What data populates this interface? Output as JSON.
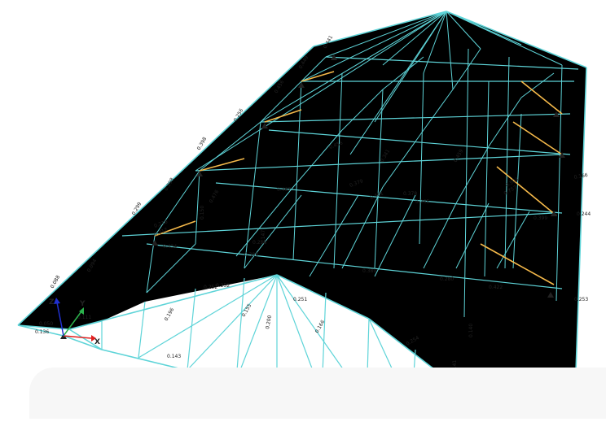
{
  "colors": {
    "background": "#ffffff",
    "roof_fill": "#f4c2c2",
    "member": "#5ed4d8",
    "brace": "#f5b94a",
    "support": "#222222",
    "axis_x": "#e02020",
    "axis_y": "#2bb24c",
    "axis_z": "#2030d0",
    "panel": "#f7f7f7"
  },
  "axes": {
    "x": "X",
    "y": "Y",
    "z": "Z"
  },
  "member_labels": [
    "0.088",
    "0.094",
    "0.299",
    "0.298",
    "0.398",
    "0.256",
    "0.456",
    "0.449",
    "0.441",
    "0.388",
    "0.216",
    "0.317",
    "0.434",
    "0.252",
    "0.456",
    "0.476",
    "0.461",
    "0.467",
    "0.378",
    "0.379",
    "0.459",
    "0.258",
    "0.265",
    "0.341",
    "0.389",
    "0.280",
    "0.399",
    "0.422",
    "0.244",
    "0.253",
    "0.504",
    "0.757",
    "0.166",
    "0.150",
    "0.263",
    "0.147",
    "0.140",
    "0.127",
    "0.252",
    "0.251",
    "0.200",
    "0.155",
    "0.166",
    "0.196",
    "0.136",
    "0.143",
    "0.215",
    "0.210",
    "0.083",
    "0.254",
    "0.174",
    "0.141",
    "0.050",
    "0.111"
  ]
}
